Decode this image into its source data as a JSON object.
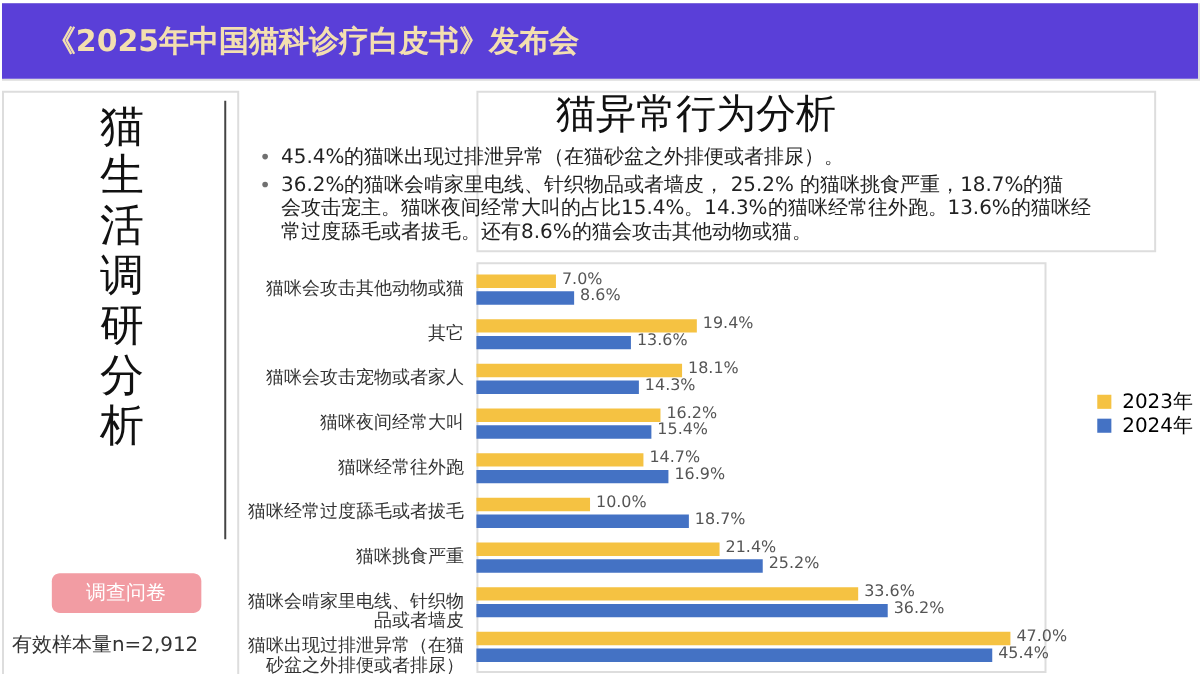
{
  "chart_data": {
    "type": "bar",
    "orientation": "horizontal",
    "title": "《2025年中国猫科诊疗白皮书》发布会",
    "subtitle": "猫异常行为分析",
    "annotations": [
      "猫生活调研分析",
      "45.4%的猫咪出现过排泄异常（在猫砂盆之外排便或者排尿）。",
      "36.2%的猫咪会啃家里电线、针织物品或者墙皮， 25.2% 的猫咪挑食严重，18.7%的猫会攻击宠主。猫咪夜间经常大叫的占比15.4%。14.3%的猫咪经常往外跑。13.6%的猫咪经常过度舔毛或者拔毛。还有8.6%的猫会攻击其他动物或猫。",
      "调查问卷",
      "有效样本量n=2,912"
    ],
    "categories": [
      "猫咪会攻击其他动物或猫",
      "其它",
      "猫咪会攻击宠物或者家人",
      "猫咪夜间经常大叫",
      "猫咪经常往外跑",
      "猫咪经常过度舔毛或者拔毛",
      "猫咪挑食严重",
      "猫咪会啃家里电线、针织物品或者墙皮",
      "猫咪出现过排泄异常（在猫砂盆之外排便或者排尿）"
    ],
    "series": [
      {
        "name": "2023年",
        "color": "#f5c242",
        "values": [
          7.0,
          19.4,
          18.1,
          16.2,
          14.7,
          10.0,
          21.4,
          33.6,
          47.0
        ],
        "value_labels": [
          "7.0%",
          "19.4%",
          "18.1%",
          "16.2%",
          "14.7%",
          "10.0%",
          "21.4%",
          "33.6%",
          "47.0%"
        ]
      },
      {
        "name": "2024年",
        "color": "#4472c4",
        "values": [
          8.6,
          13.6,
          14.3,
          15.4,
          16.9,
          18.7,
          25.2,
          36.2,
          45.4
        ],
        "value_labels": [
          "8.6%",
          "13.6%",
          "14.3%",
          "15.4%",
          "16.9%",
          "18.7%",
          "25.2%",
          "36.2%",
          "45.4%"
        ]
      }
    ],
    "legend": "right",
    "tick_labels": "y",
    "grid": false
  }
}
